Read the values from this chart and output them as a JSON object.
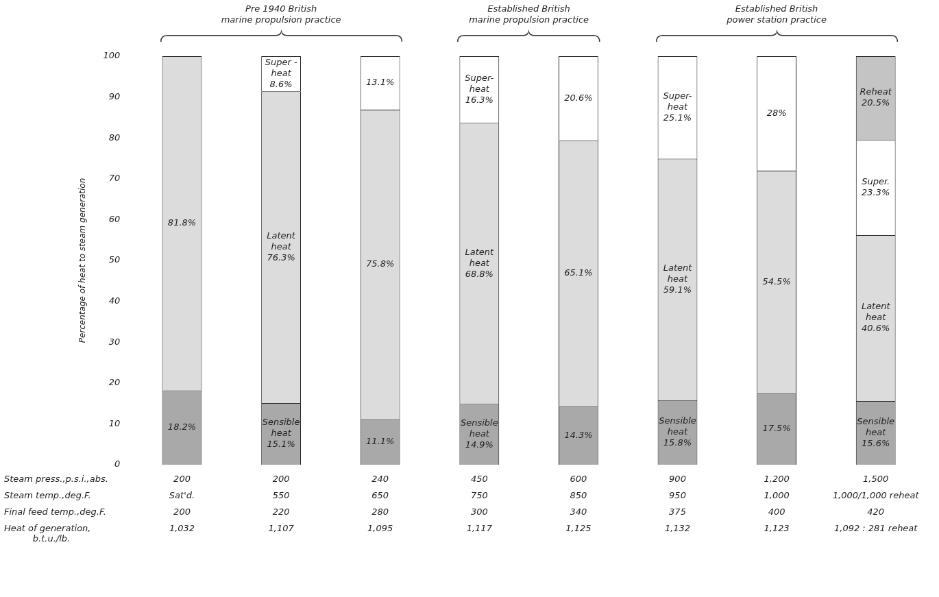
{
  "chart_data": {
    "type": "bar",
    "stacked": true,
    "ylabel": "Percentage of heat to steam generation",
    "ylim": [
      0,
      100
    ],
    "yticks": [
      0,
      10,
      20,
      30,
      40,
      50,
      60,
      70,
      80,
      90,
      100
    ],
    "grid": false,
    "legend": false,
    "categories": [
      null,
      null,
      null,
      null,
      null,
      null,
      null,
      null
    ],
    "series": [
      {
        "color": "#a9a9a9",
        "values": [
          18.2,
          15.1,
          11.1,
          14.9,
          14.3,
          15.8,
          17.5,
          15.6
        ],
        "value_labels": [
          "18.2%",
          "Sensible\nheat\n15.1%",
          "11.1%",
          "Sensible\nheat\n14.9%",
          "14.3%",
          "Sensible\nheat\n15.8%",
          "17.5%",
          "Sensible\nheat\n15.6%"
        ]
      },
      {
        "color": "#dcdcdc",
        "values": [
          81.8,
          76.3,
          75.8,
          68.8,
          65.1,
          59.1,
          54.5,
          40.6
        ],
        "value_labels": [
          "81.8%",
          "Latent\nheat\n76.3%",
          "75.8%",
          "Latent\nheat\n68.8%",
          "65.1%",
          "Latent\nheat\n59.1%",
          "54.5%",
          "Latent\nheat\n40.6%"
        ]
      },
      {
        "color": "#ffffff",
        "values": [
          null,
          8.6,
          13.1,
          16.3,
          20.6,
          25.1,
          28,
          23.3
        ],
        "value_labels": [
          null,
          "Super -\nheat\n8.6%",
          "13.1%",
          "Super-\nheat\n16.3%",
          "20.6%",
          "Super-\nheat\n25.1%",
          "28%",
          "Super.\n23.3%"
        ]
      },
      {
        "color": "#c4c4c4",
        "values": [
          null,
          null,
          null,
          null,
          null,
          null,
          null,
          20.5
        ],
        "value_labels": [
          null,
          null,
          null,
          null,
          null,
          null,
          null,
          "Reheat\n20.5%"
        ]
      }
    ],
    "annotations": [
      "Pre 1940 British\nmarine propulsion practice",
      "Established British\nmarine propulsion practice",
      "Established British\npower station practice",
      "Steam press.,p.s.i.,abs.",
      "200",
      "200",
      "240",
      "450",
      "600",
      "900",
      "1,200",
      "1,500",
      "Steam temp.,deg.F.",
      "Sat'd.",
      "550",
      "650",
      "750",
      "850",
      "950",
      "1,000",
      "1,000/1,000 reheat",
      "Final feed temp.,deg.F.",
      "200",
      "220",
      "280",
      "300",
      "340",
      "375",
      "400",
      "420",
      "Heat of generation,\nb.t.u./lb.",
      "1,032",
      "1,107",
      "1,095",
      "1,117",
      "1,125",
      "1,132",
      "1,123",
      "1,092 : 281 reheat"
    ]
  }
}
